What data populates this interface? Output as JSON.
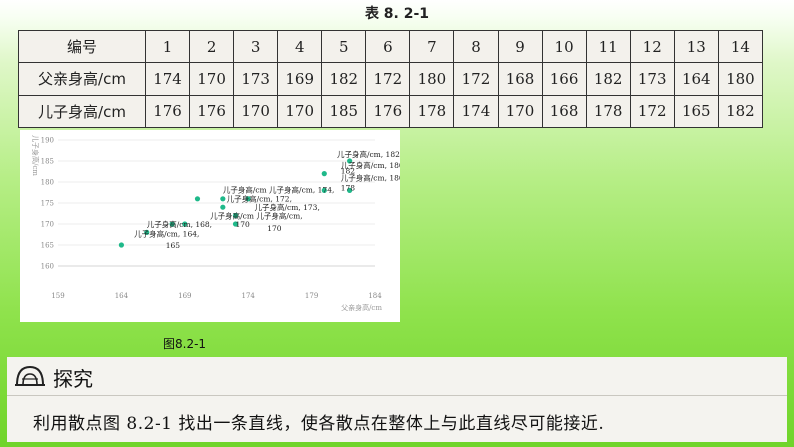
{
  "table_caption": "表 8. 2-1",
  "table": {
    "header_label": "编号",
    "ids": [
      "1",
      "2",
      "3",
      "4",
      "5",
      "6",
      "7",
      "8",
      "9",
      "10",
      "11",
      "12",
      "13",
      "14"
    ],
    "father_label": "父亲身高/cm",
    "father": [
      "174",
      "170",
      "173",
      "169",
      "182",
      "172",
      "180",
      "172",
      "168",
      "166",
      "182",
      "173",
      "164",
      "180"
    ],
    "son_label": "儿子身高/cm",
    "son": [
      "176",
      "176",
      "170",
      "170",
      "185",
      "176",
      "178",
      "174",
      "170",
      "168",
      "178",
      "172",
      "165",
      "182"
    ]
  },
  "figure_caption": "图8.2-1",
  "chart_data": {
    "type": "scatter",
    "xlabel": "父亲身高/cm",
    "ylabel": "儿子身高/cm",
    "xlim": [
      159,
      184
    ],
    "ylim": [
      160,
      190
    ],
    "xticks": [
      "159",
      "164",
      "169",
      "174",
      "179",
      "184"
    ],
    "yticks": [
      "160",
      "165",
      "170",
      "175",
      "180",
      "185",
      "190"
    ],
    "grid": true,
    "point_color": "#1fb98a",
    "points": [
      {
        "x": 174,
        "y": 176
      },
      {
        "x": 170,
        "y": 176
      },
      {
        "x": 173,
        "y": 170
      },
      {
        "x": 169,
        "y": 170
      },
      {
        "x": 182,
        "y": 185
      },
      {
        "x": 172,
        "y": 176
      },
      {
        "x": 180,
        "y": 178
      },
      {
        "x": 172,
        "y": 174
      },
      {
        "x": 168,
        "y": 170
      },
      {
        "x": 166,
        "y": 168
      },
      {
        "x": 182,
        "y": 178
      },
      {
        "x": 173,
        "y": 172
      },
      {
        "x": 164,
        "y": 165
      },
      {
        "x": 180,
        "y": 182
      }
    ],
    "data_labels": [
      {
        "x": 181,
        "y": 186,
        "text": "儿子身高/cm, 182,"
      },
      {
        "x": 181.3,
        "y": 183.3,
        "text": "儿子身高/cm, 180,"
      },
      {
        "x": 181.3,
        "y": 182,
        "text": "182"
      },
      {
        "x": 181.3,
        "y": 180.3,
        "text": "儿子身高/cm, 180,"
      },
      {
        "x": 181.3,
        "y": 178,
        "text": "178"
      },
      {
        "x": 172,
        "y": 177.5,
        "text": "儿子身高/cm 儿子身高/cm, 174,"
      },
      {
        "x": 172.3,
        "y": 175.3,
        "text": "儿子身高/cm, 172,"
      },
      {
        "x": 174.5,
        "y": 173.3,
        "text": "儿子身高/cm, 173,"
      },
      {
        "x": 171,
        "y": 171.3,
        "text": "儿子身高/cm 儿子身高/cm,"
      },
      {
        "x": 173,
        "y": 169.3,
        "text": "170"
      },
      {
        "x": 175.5,
        "y": 168.3,
        "text": "170"
      },
      {
        "x": 166,
        "y": 169.3,
        "text": "儿子身高/cm, 168,"
      },
      {
        "x": 165,
        "y": 167,
        "text": "儿子身高/cm, 164,"
      },
      {
        "x": 167.5,
        "y": 164.3,
        "text": "165"
      }
    ]
  },
  "explore": {
    "title": "探究",
    "text": "利用散点图 8.2-1 找出一条直线，使各散点在整体上与此直线尽可能接近."
  }
}
